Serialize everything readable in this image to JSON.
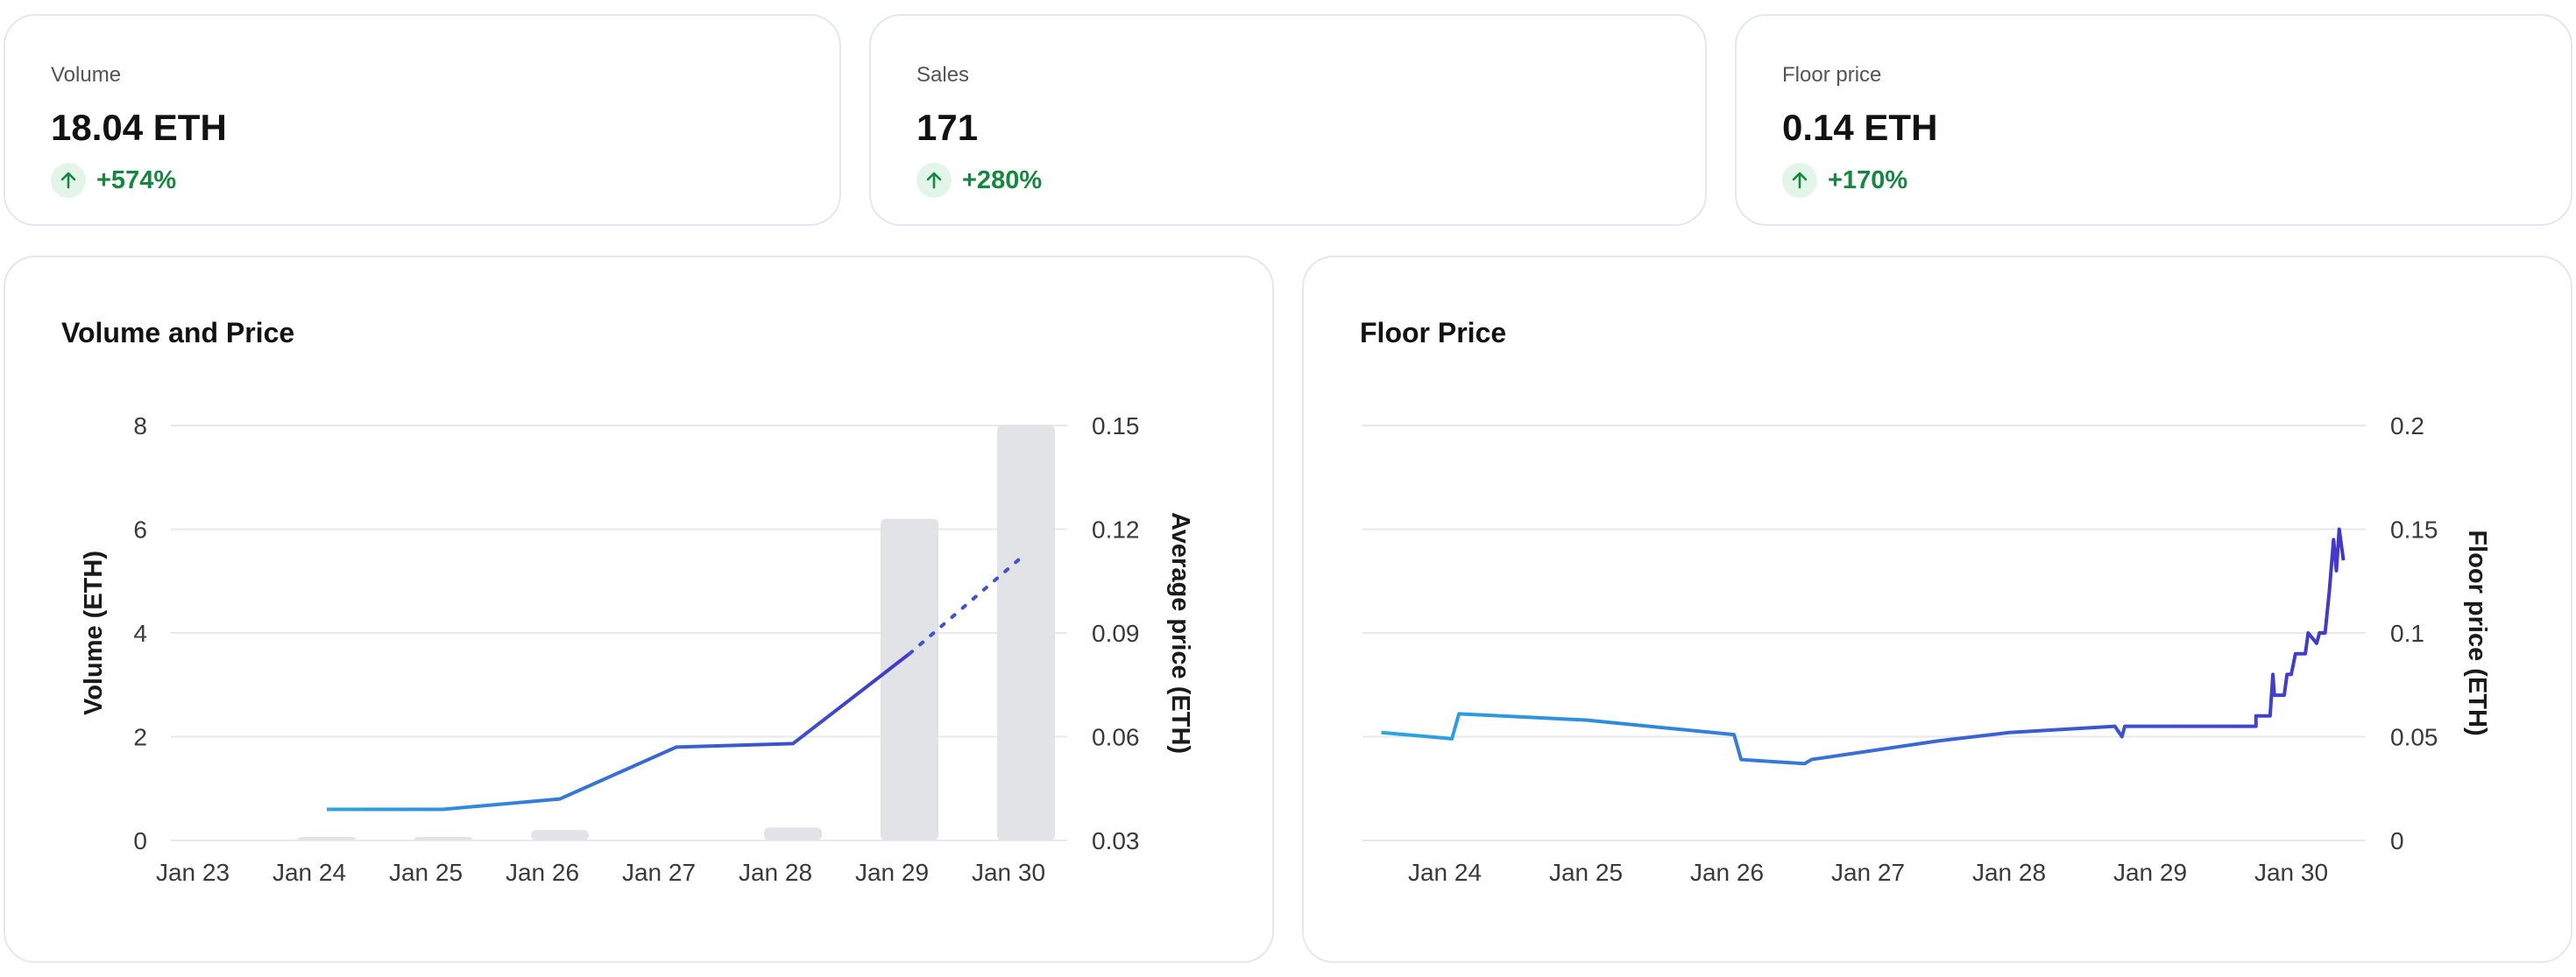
{
  "stats": [
    {
      "label": "Volume",
      "value": "18.04 ETH",
      "delta": "+574%"
    },
    {
      "label": "Sales",
      "value": "171",
      "delta": "+280%"
    },
    {
      "label": "Floor price",
      "value": "0.14 ETH",
      "delta": "+170%"
    }
  ],
  "colors": {
    "positive": "#14883e",
    "bar": "#e1e3e6",
    "line": "#3f51d6",
    "line_start": "#2aa6e0",
    "grid": "#e6e8ea"
  },
  "volume_chart": {
    "title": "Volume and Price"
  },
  "floor_chart": {
    "title": "Floor Price"
  },
  "chart_data": [
    {
      "type": "bar",
      "title": "Volume and Price",
      "x": [
        "Jan 24",
        "Jan 25",
        "Jan 26",
        "Jan 27",
        "Jan 28",
        "Jan 29",
        "Jan 30"
      ],
      "xticks": [
        "Jan 23",
        "Jan 24",
        "Jan 25",
        "Jan 26",
        "Jan 27",
        "Jan 28",
        "Jan 29",
        "Jan 30"
      ],
      "ylabel": "Volume (ETH)",
      "ylim": [
        0,
        8
      ],
      "yticks": [
        "0",
        "2",
        "4",
        "6",
        "8"
      ],
      "y2label": "Average price (ETH)",
      "y2lim": [
        0.03,
        0.15
      ],
      "y2ticks": [
        "0.03",
        "0.06",
        "0.09",
        "0.12",
        "0.15"
      ],
      "grid": true,
      "series": [
        {
          "kind": "bar",
          "values": [
            0.02,
            0.03,
            0.2,
            0.0,
            0.25,
            6.2,
            8.0
          ]
        },
        {
          "kind": "line",
          "values": [
            0.039,
            0.039,
            0.042,
            0.057,
            0.058,
            0.084,
            0.113
          ]
        }
      ]
    },
    {
      "type": "line",
      "title": "Floor Price",
      "xticks": [
        "Jan 24",
        "Jan 25",
        "Jan 26",
        "Jan 27",
        "Jan 28",
        "Jan 29",
        "Jan 30"
      ],
      "y2label": "Floor price (ETH)",
      "ylim": [
        0,
        0.2
      ],
      "yticks": [
        "0",
        "0.05",
        "0.1",
        "0.15",
        "0.2"
      ],
      "grid": true,
      "series": [
        {
          "kind": "line",
          "points": [
            [
              23.55,
              0.052
            ],
            [
              24.05,
              0.049
            ],
            [
              24.1,
              0.061
            ],
            [
              25.0,
              0.058
            ],
            [
              26.05,
              0.051
            ],
            [
              26.1,
              0.039
            ],
            [
              26.55,
              0.037
            ],
            [
              26.6,
              0.039
            ],
            [
              27.0,
              0.043
            ],
            [
              27.5,
              0.048
            ],
            [
              28.0,
              0.052
            ],
            [
              28.75,
              0.055
            ],
            [
              28.8,
              0.05
            ],
            [
              28.82,
              0.055
            ],
            [
              29.75,
              0.055
            ],
            [
              29.75,
              0.06
            ],
            [
              29.85,
              0.06
            ],
            [
              29.87,
              0.08
            ],
            [
              29.88,
              0.07
            ],
            [
              29.95,
              0.07
            ],
            [
              29.97,
              0.08
            ],
            [
              30.0,
              0.08
            ],
            [
              30.03,
              0.09
            ],
            [
              30.1,
              0.09
            ],
            [
              30.12,
              0.1
            ],
            [
              30.18,
              0.095
            ],
            [
              30.2,
              0.1
            ],
            [
              30.24,
              0.1
            ],
            [
              30.27,
              0.12
            ],
            [
              30.3,
              0.145
            ],
            [
              30.32,
              0.13
            ],
            [
              30.34,
              0.15
            ],
            [
              30.37,
              0.135
            ]
          ]
        }
      ]
    }
  ]
}
